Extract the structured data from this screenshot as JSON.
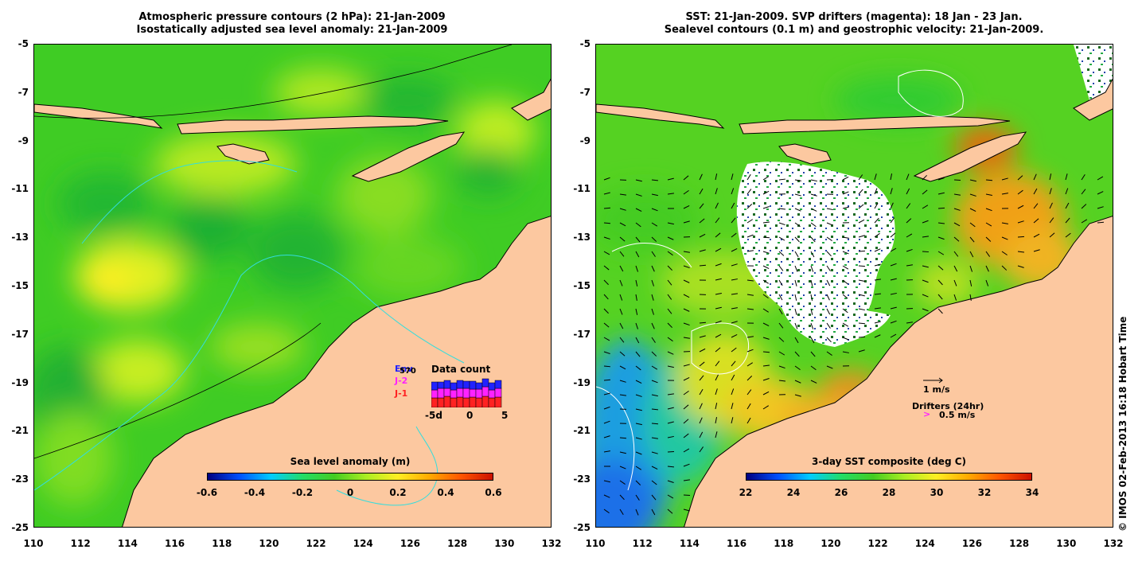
{
  "left_panel": {
    "title_line1": "Atmospheric pressure contours (2 hPa): 21-Jan-2009",
    "title_line2": "Isostatically adjusted sea level anomaly: 21-Jan-2009",
    "colorbar": {
      "title": "Sea level anomaly (m)",
      "ticks": [
        "-0.6",
        "-0.4",
        "-0.2",
        "0",
        "0.2",
        "0.4",
        "0.6"
      ],
      "range": [
        -0.6,
        0.6
      ]
    },
    "data_count": {
      "title": "Data count",
      "legend": [
        "Env",
        "J-2",
        "J-1"
      ],
      "legend_overlay": "570",
      "legend_colors": [
        "#2222ff",
        "#ff22ff",
        "#ff2222"
      ],
      "axis_ticks": [
        "-5d",
        "0",
        "5"
      ]
    }
  },
  "right_panel": {
    "title_line1": "SST: 21-Jan-2009. SVP drifters (magenta): 18 Jan - 23 Jan.",
    "title_line2": "Sealevel contours (0.1 m) and geostrophic velocity: 21-Jan-2009.",
    "colorbar": {
      "title": "3-day SST composite (deg C)",
      "ticks": [
        "22",
        "24",
        "26",
        "28",
        "30",
        "32",
        "34"
      ],
      "range": [
        22,
        34
      ]
    },
    "velocity_scale": "1 m/s",
    "drifters_label": "Drifters (24hr)",
    "drifters_scale": "0.5 m/s",
    "drifter_glyph": ">"
  },
  "axes": {
    "lat_ticks": [
      "-5",
      "-7",
      "-9",
      "-11",
      "-13",
      "-15",
      "-17",
      "-19",
      "-21",
      "-23",
      "-25"
    ],
    "lon_ticks": [
      "110",
      "112",
      "114",
      "116",
      "118",
      "120",
      "122",
      "124",
      "126",
      "128",
      "130",
      "132"
    ]
  },
  "credit": "© IMOS 02-Feb-2013 16:18 Hobart Time",
  "colors": {
    "land": "#fcc8a0",
    "anomaly_zero": "#44cc22",
    "sst_mid": "#66dd22"
  }
}
